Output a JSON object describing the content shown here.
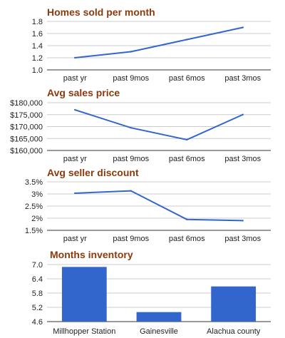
{
  "chart_data": [
    {
      "type": "line",
      "title": "Homes sold per month",
      "categories": [
        "past yr",
        "past 9mos",
        "past 6mos",
        "past 3mos"
      ],
      "yticks": [
        "1.0",
        "1.2",
        "1.4",
        "1.6",
        "1.8"
      ],
      "ylim": [
        1.0,
        1.8
      ],
      "values": [
        1.2,
        1.3,
        1.5,
        1.7
      ],
      "color": "#3366cc",
      "grid": true
    },
    {
      "type": "line",
      "title": "Avg sales price",
      "categories": [
        "past yr",
        "past 9mos",
        "past 6mos",
        "past 3mos"
      ],
      "yticks": [
        "$160,000",
        "$165,000",
        "$170,000",
        "$175,000",
        "$180,000"
      ],
      "ylim": [
        160000,
        180000
      ],
      "values": [
        177000,
        169500,
        164500,
        175000
      ],
      "color": "#3366cc",
      "grid": true
    },
    {
      "type": "line",
      "title": "Avg seller discount",
      "categories": [
        "past yr",
        "past 9mos",
        "past 6mos",
        "past 3mos"
      ],
      "yticks": [
        "1.5%",
        "2%",
        "2.5%",
        "3%",
        "3.5%"
      ],
      "ylim": [
        1.5,
        3.5
      ],
      "values": [
        3.03,
        3.13,
        1.95,
        1.9
      ],
      "color": "#3366cc",
      "grid": true
    },
    {
      "type": "bar",
      "title": "Months inventory",
      "categories": [
        "Millhopper Station",
        "Gainesville",
        "Alachua county"
      ],
      "yticks": [
        "4.6",
        "5.2",
        "5.8",
        "6.4",
        "7.0"
      ],
      "ylim": [
        4.6,
        7.0
      ],
      "values": [
        6.9,
        5.0,
        6.08
      ],
      "color": "#3366cc",
      "grid": true
    }
  ]
}
